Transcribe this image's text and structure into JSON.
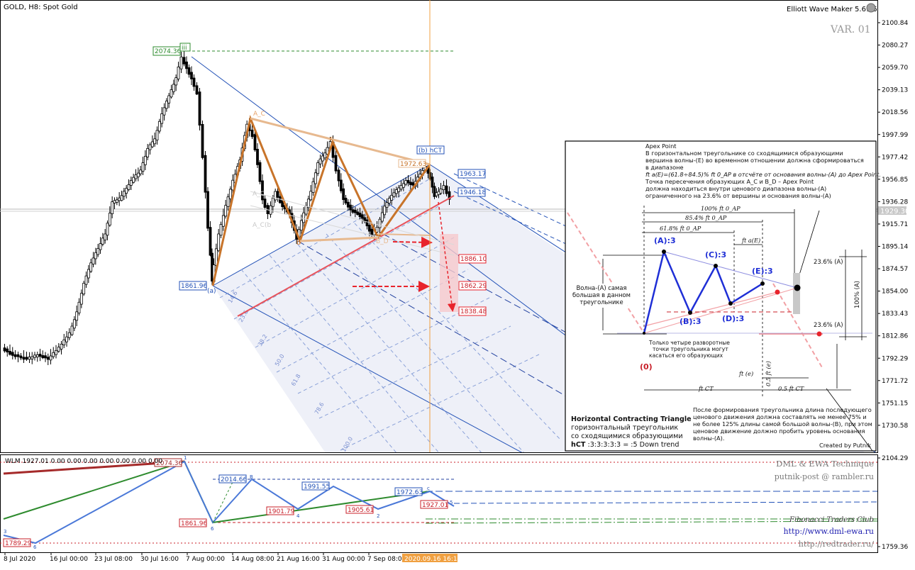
{
  "chart_title": "GOLD, H8:  Spot Gold",
  "indicator_name": "Elliott Wave Maker 5.61.5",
  "variant_label": "VAR. 01",
  "price_axis_ticks": [
    "2100.84",
    "2080.27",
    "2059.70",
    "2039.13",
    "2018.56",
    "1997.99",
    "1977.42",
    "1956.85",
    "1936.28",
    "1915.71",
    "1895.14",
    "1874.57",
    "1854.00",
    "1833.43",
    "1812.86",
    "1792.29",
    "1771.72",
    "1751.15",
    "1730.58"
  ],
  "current_price_label": "1929.30",
  "time_axis_ticks": [
    "8 Jul 2020",
    "16 Jul 00:00",
    "23 Jul 08:00",
    "30 Jul 16:00",
    "7 Aug 00:00",
    "14 Aug 08:00",
    "21 Aug 16:00",
    "31 Aug 00:00",
    "7 Sep 08:00"
  ],
  "cursor_time_label": "2020.09.16 16:15",
  "wave_labels": {
    "iii": "iii",
    "a": "(a)",
    "b_hct": "(b) hCT",
    "A_C": "A_C",
    "B_D": "B_D",
    "A_C_b": "A_C(b",
    "c": "c",
    "b_lower": "b"
  },
  "price_labels": {
    "p2074": "2074.36",
    "p1972": "1972.63",
    "p1963": "1963.17",
    "p1946": "1946.18",
    "p1861": "1861.96",
    "p1886": "1886.10",
    "p1862": "1862.29",
    "p1838": "1838.48"
  },
  "channel_levels": [
    "14.6",
    "23.6",
    "38.2",
    "50.0",
    "61.8",
    "78.6",
    "100.0"
  ],
  "chart_data": {
    "type": "candlestick",
    "symbol": "GOLD",
    "timeframe": "H8",
    "ylim": [
      1720,
      2105
    ],
    "waves": [
      {
        "label": "(a)",
        "price": 1861.96
      },
      {
        "label": "A_C",
        "price": 2015
      },
      {
        "label": "B_D",
        "price": 1900
      },
      {
        "label": "c",
        "price": 1990
      },
      {
        "label": "(b)",
        "price": 1972.63
      }
    ],
    "targets": [
      1886.1,
      1862.29,
      1838.48
    ]
  },
  "info_panel": {
    "apex_title": "Apex Point",
    "apex_lines": [
      "В горизонтальном треугольнике со сходящимися образующими",
      "вершина волны-(E) во временном отношении должна сформироваться",
      "в диапазоне",
      "ft a(E)=(61.8÷84.5)% ft 0_AP в отсчёте от основания волны-(A) до Apex Point.",
      "Точка пересечения образующих A_C и B_D – Apex Point",
      "должна находиться внутри ценового диапазона волны-(A)",
      "ограниченного на 23.6% от вершины и основания волны-(A)"
    ],
    "ft100": "100% ft 0_AP",
    "ft85": "85.4% ft 0_AP",
    "ft61": "61.8% ft 0_AP",
    "ftaE": "ft a(E)",
    "pA": "(A):3",
    "pB": "(B):3",
    "pC": "(C):3",
    "pD": "(D):3",
    "pE": "(E):3",
    "p0": "(0)",
    "wave_a_note": [
      "Волна-(A) самая",
      "большая в данном",
      "треугольнике"
    ],
    "touch_note": [
      "Только четыре разворотные",
      "точки треугольника могут",
      "касаться его образующих"
    ],
    "pct236_top": "23.6% (A)",
    "pct236_bot": "23.6% (A)",
    "pct100": "100% (A)",
    "ft_e": "ft (e)",
    "half_ft_e": "0.5 ft (e)",
    "ft_ct": "ft CT",
    "half_ft_ct": "0.5 ft CT",
    "after_lines": [
      "После формирования треугольника длина последующего",
      "ценового движения должна составлять не менее 75% и",
      "не более 125% длины самой большой волны-(B), при этом",
      "ценовое движение должно пробить уровень основания",
      "волны-(A)."
    ],
    "credit": "Created by Putnik",
    "pattern_title": "Horizontal Contracting Triangle",
    "pattern_lines": [
      "горизонтальный треугольник",
      "со сходящимися образующими"
    ],
    "pattern_code_bold": "hCT",
    "pattern_code": " :3:3:3:3:3 = :5 Down trend"
  },
  "wlm": {
    "header": "WLM 1927.01 0.00 0.00 0.00 0.00 0.00 0.00 0.00",
    "axis_top": "2104.29",
    "axis_bottom": "1759.36",
    "labels": {
      "p2074": "2074.36",
      "p2014": "2014.66",
      "p1991": "1991.55",
      "p1972": "1972.63",
      "p1927": "1927.01",
      "p1901": "1901.79",
      "p1905": "1905.61",
      "p1861": "1861.96",
      "p1789": "1789.29"
    },
    "point_marks": {
      "m1": "1",
      "m2": "2",
      "m3": "3",
      "m4": "4",
      "m5": "5",
      "m6": "6",
      "mB": "B",
      "mc": "c"
    }
  },
  "watermark": {
    "line1": "DML & EWA Technique",
    "line2": "putnik-post @ rambler.ru",
    "line3": "Fibonacci   Traders   Club",
    "line4": "http://www.dml-ewa.ru",
    "line5": "http://redtrader.ru/"
  },
  "colors": {
    "wave_orange": "#c8742a",
    "wave_light": "#e7b98f",
    "channel_blue": "#2352b7",
    "red_line": "#e8525a",
    "cursor": "#f0a040",
    "panel_blue": "#1f2fd6"
  }
}
